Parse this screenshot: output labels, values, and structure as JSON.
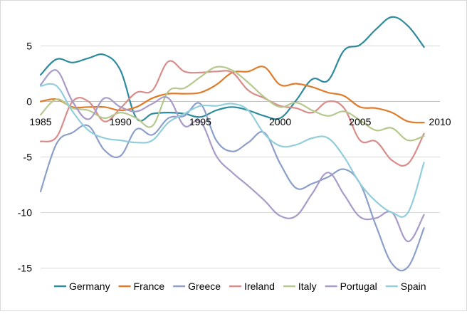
{
  "chart_data": {
    "type": "line",
    "title": "",
    "xlabel": "",
    "ylabel": "",
    "xlim": [
      1985,
      2010
    ],
    "ylim": [
      -15,
      8
    ],
    "x_ticks": [
      1985,
      1990,
      1995,
      2000,
      2005,
      2010
    ],
    "y_ticks": [
      5,
      0,
      -5,
      -10,
      -15
    ],
    "legend_position": "bottom",
    "grid": {
      "horizontal": true,
      "vertical": false
    },
    "series": [
      {
        "name": "Germany",
        "color": "#2E8A9D",
        "x": [
          1985,
          1986,
          1987,
          1988,
          1989,
          1990,
          1991,
          1992,
          1993,
          1994,
          1995,
          1996,
          1997,
          1998,
          1999,
          2000,
          2001,
          2002,
          2003,
          2004,
          2005,
          2006,
          2007,
          2008,
          2009
        ],
        "y": [
          2.4,
          3.8,
          3.5,
          3.9,
          4.2,
          2.8,
          -1.5,
          -1.1,
          -1.0,
          -1.1,
          -1.4,
          -0.8,
          -0.5,
          -0.8,
          -1.3,
          -1.5,
          0.1,
          2.0,
          1.9,
          4.6,
          5.1,
          6.5,
          7.6,
          6.8,
          4.9
        ]
      },
      {
        "name": "France",
        "color": "#E07B2A",
        "x": [
          1985,
          1986,
          1987,
          1988,
          1989,
          1990,
          1991,
          1992,
          1993,
          1994,
          1995,
          1996,
          1997,
          1998,
          1999,
          2000,
          2001,
          2002,
          2003,
          2004,
          2005,
          2006,
          2007,
          2008,
          2009
        ],
        "y": [
          0.0,
          0.2,
          -0.5,
          -0.5,
          -0.5,
          -0.8,
          -0.5,
          0.3,
          0.7,
          0.7,
          0.8,
          1.5,
          2.6,
          2.7,
          3.1,
          1.5,
          1.6,
          1.3,
          0.8,
          0.5,
          -0.5,
          -0.6,
          -1.0,
          -1.8,
          -1.9
        ]
      },
      {
        "name": "Greece",
        "color": "#8C9FC9",
        "x": [
          1985,
          1986,
          1987,
          1988,
          1989,
          1990,
          1991,
          1992,
          1993,
          1994,
          1995,
          1996,
          1997,
          1998,
          1999,
          2000,
          2001,
          2002,
          2003,
          2004,
          2005,
          2006,
          2007,
          2008,
          2009
        ],
        "y": [
          -8.1,
          -3.8,
          -2.8,
          -2.2,
          -4.4,
          -4.9,
          -2.5,
          -3.0,
          -1.5,
          -1.3,
          -0.2,
          -3.5,
          -4.5,
          -3.7,
          -2.8,
          -5.6,
          -7.8,
          -7.4,
          -6.8,
          -6.1,
          -7.4,
          -11.2,
          -14.6,
          -14.9,
          -11.4
        ]
      },
      {
        "name": "Ireland",
        "color": "#D98C8A",
        "x": [
          1985,
          1986,
          1987,
          1988,
          1989,
          1990,
          1991,
          1992,
          1993,
          1994,
          1995,
          1996,
          1997,
          1998,
          1999,
          2000,
          2001,
          2002,
          2003,
          2004,
          2005,
          2006,
          2007,
          2008,
          2009
        ],
        "y": [
          -3.6,
          -3.2,
          0.0,
          0.0,
          -1.8,
          -0.6,
          0.8,
          1.0,
          3.6,
          2.7,
          2.6,
          2.7,
          2.6,
          1.0,
          0.3,
          -0.4,
          -0.6,
          -1.0,
          0.0,
          -0.6,
          -3.5,
          -3.6,
          -5.3,
          -5.6,
          -2.9
        ]
      },
      {
        "name": "Italy",
        "color": "#B5C98E",
        "x": [
          1985,
          1986,
          1987,
          1988,
          1989,
          1990,
          1991,
          1992,
          1993,
          1994,
          1995,
          1996,
          1997,
          1998,
          1999,
          2000,
          2001,
          2002,
          2003,
          2004,
          2005,
          2006,
          2007,
          2008,
          2009
        ],
        "y": [
          -1.2,
          0.2,
          -0.6,
          -0.8,
          -1.5,
          -1.0,
          -1.5,
          -2.2,
          0.9,
          1.2,
          2.2,
          3.1,
          2.8,
          1.7,
          0.4,
          -0.5,
          -0.1,
          -0.8,
          -1.3,
          -0.9,
          -1.7,
          -2.6,
          -2.4,
          -3.5,
          -3.1
        ]
      },
      {
        "name": "Portugal",
        "color": "#A99BC8",
        "x": [
          1985,
          1986,
          1987,
          1988,
          1989,
          1990,
          1991,
          1992,
          1993,
          1994,
          1995,
          1996,
          1997,
          1998,
          1999,
          2000,
          2001,
          2002,
          2003,
          2004,
          2005,
          2006,
          2007,
          2008,
          2009
        ],
        "y": [
          1.5,
          2.8,
          0.0,
          -1.6,
          0.3,
          -0.5,
          -0.9,
          -0.2,
          0.3,
          -2.2,
          -1.8,
          -4.9,
          -6.4,
          -7.6,
          -8.9,
          -10.3,
          -10.3,
          -8.3,
          -6.4,
          -8.4,
          -10.4,
          -10.5,
          -10.0,
          -12.6,
          -10.2
        ]
      },
      {
        "name": "Spain",
        "color": "#92CDDC",
        "x": [
          1985,
          1986,
          1987,
          1988,
          1989,
          1990,
          1991,
          1992,
          1993,
          1994,
          1995,
          1996,
          1997,
          1998,
          1999,
          2000,
          2001,
          2002,
          2003,
          2004,
          2005,
          2006,
          2007,
          2008,
          2009
        ],
        "y": [
          1.4,
          1.4,
          -0.9,
          -2.6,
          -3.3,
          -3.5,
          -3.7,
          -3.5,
          -1.9,
          -1.1,
          -0.4,
          -0.4,
          -0.2,
          -0.8,
          -2.9,
          -4.0,
          -3.9,
          -3.3,
          -3.3,
          -5.0,
          -7.4,
          -9.0,
          -10.0,
          -10.0,
          -5.5
        ]
      }
    ]
  }
}
